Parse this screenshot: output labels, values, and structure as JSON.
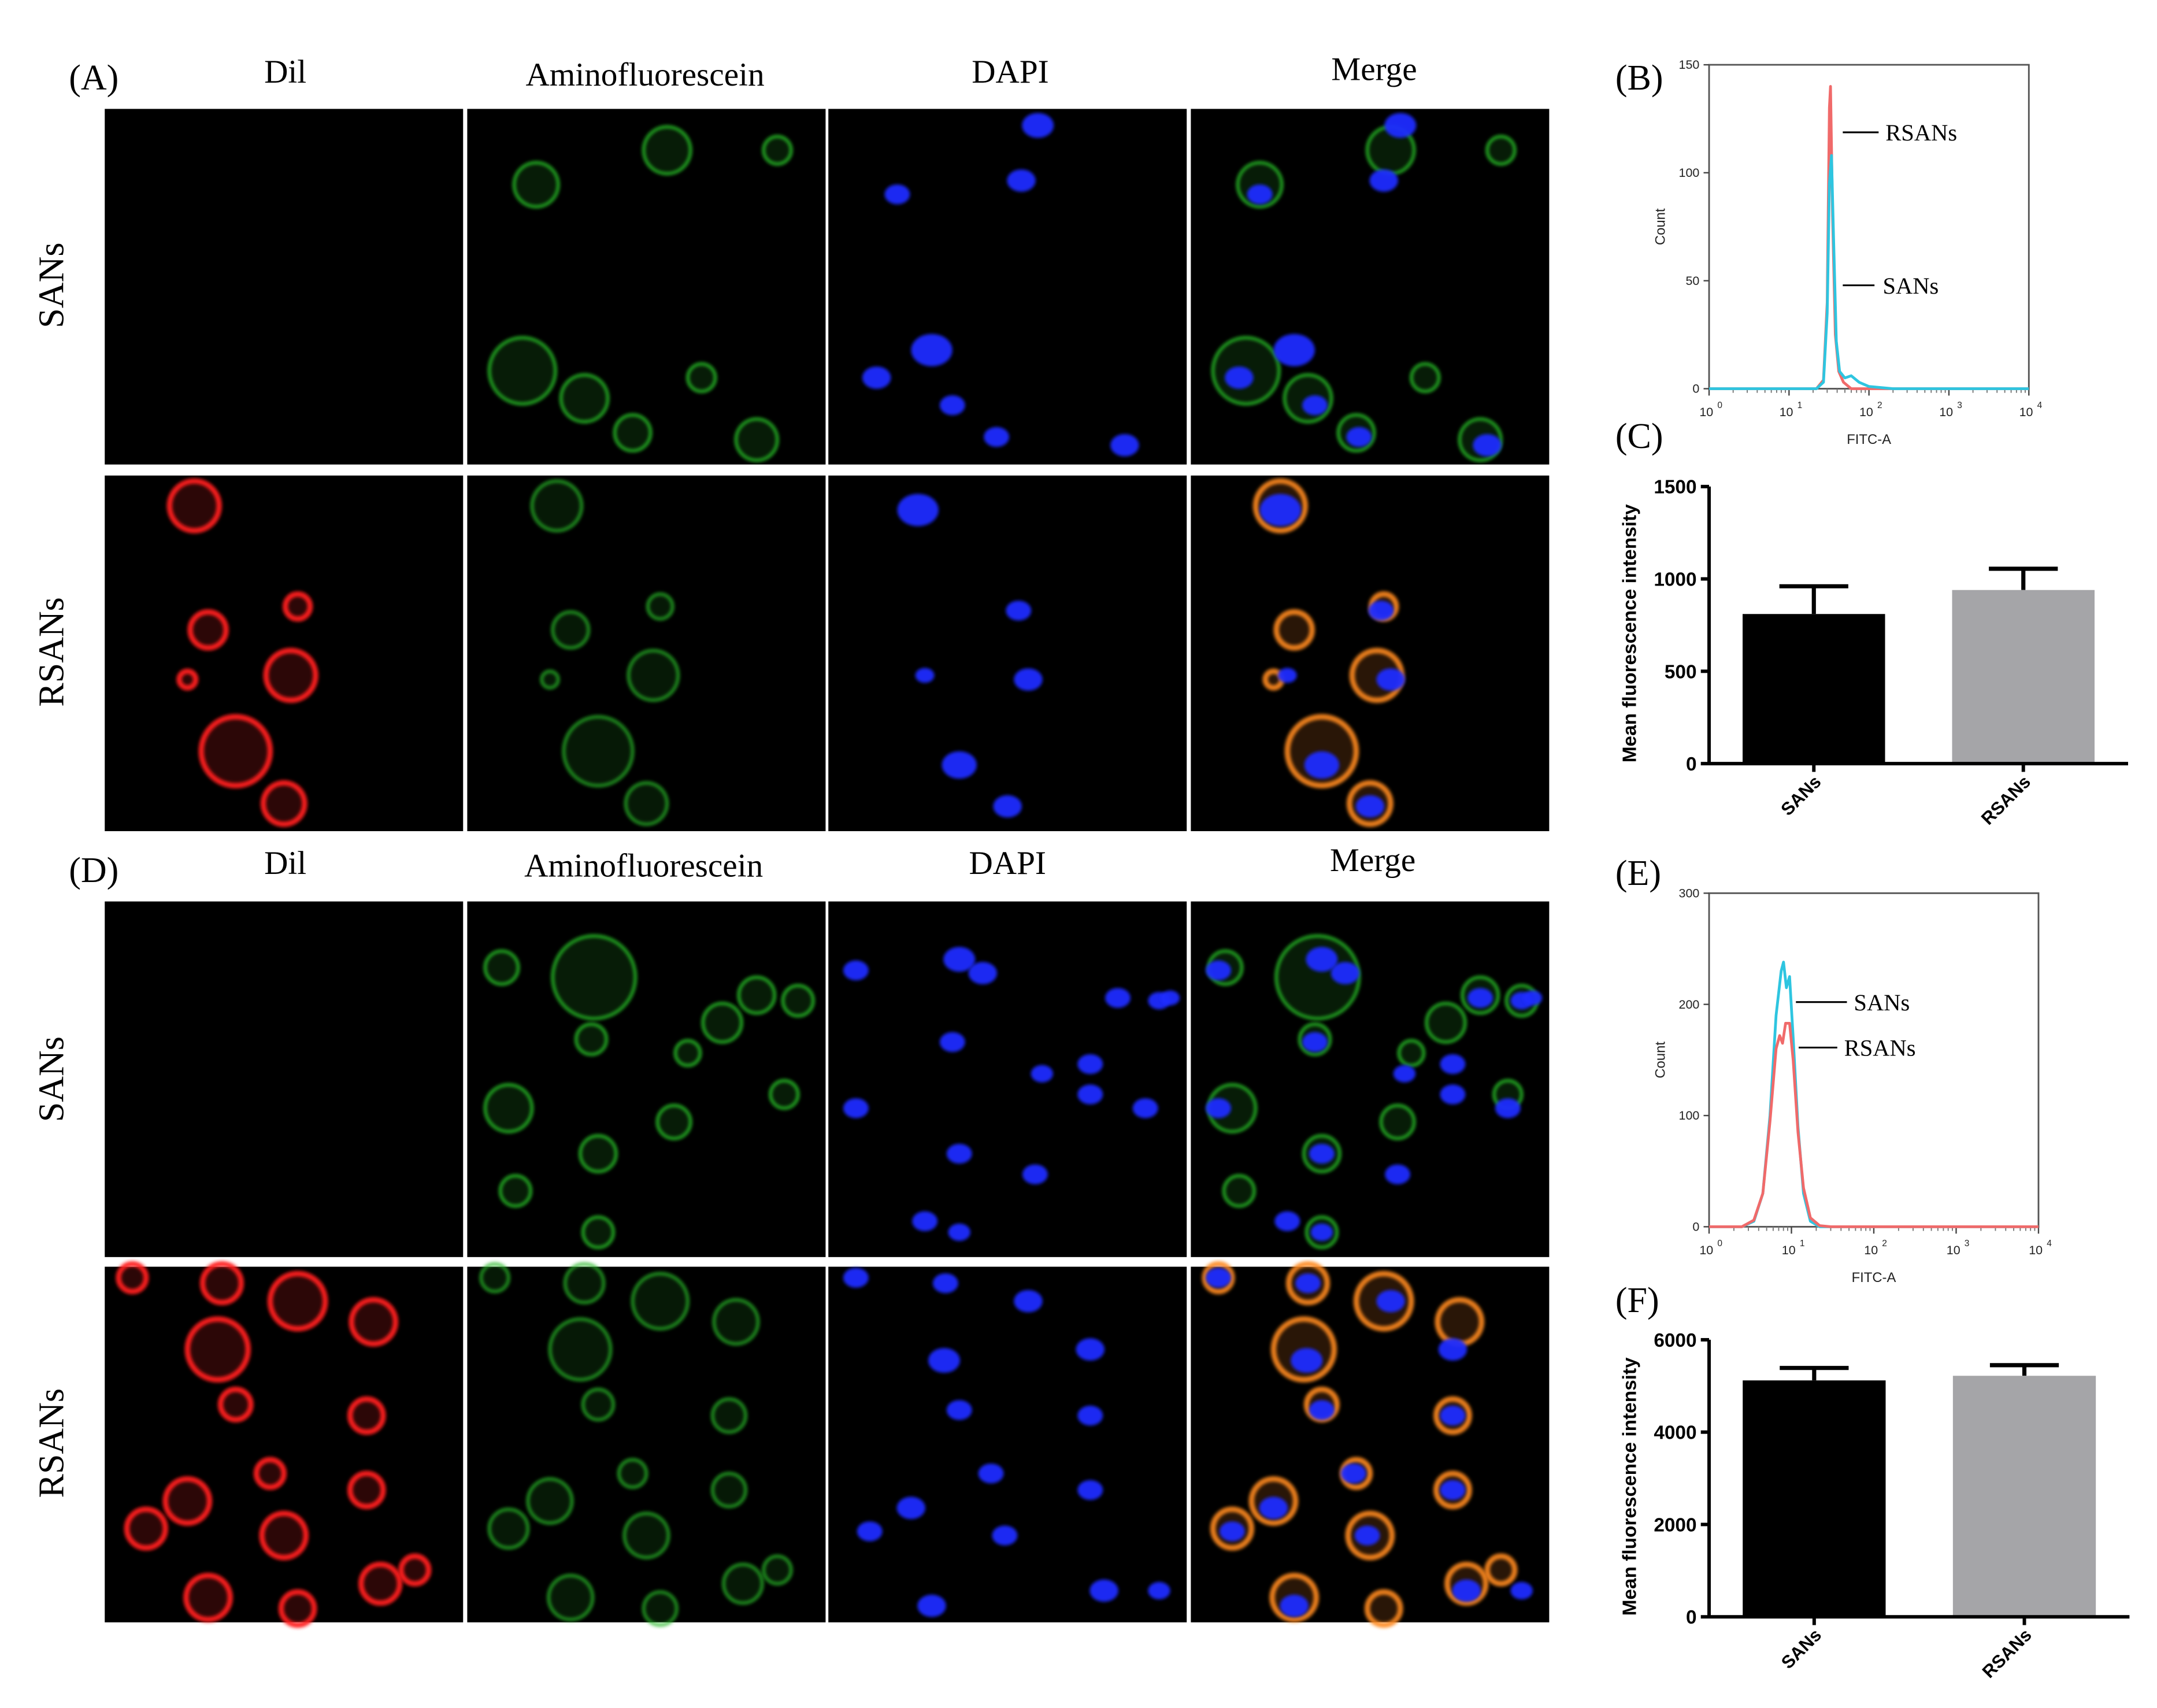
{
  "figure": {
    "panel_labels": [
      "(A)",
      "(B)",
      "(C)",
      "(D)",
      "(E)",
      "(F)"
    ],
    "column_headers": [
      "Dil",
      "Aminofluorescein",
      "DAPI",
      "Merge"
    ],
    "row_labels": [
      "SANs",
      "RSANs"
    ]
  },
  "colors": {
    "rsans_line": "#f06a6a",
    "sans_line": "#2ec5e0",
    "sans_bar": "#000000",
    "rsans_bar": "#a5a5a8",
    "dil_channel": "#ff1e1e",
    "amino_channel": "#27b827",
    "dapi_channel": "#1f2bff"
  },
  "micrographs": {
    "cell_shape_names": [
      "cell-ring",
      "nucleus"
    ]
  },
  "chart_data": [
    {
      "id": "B",
      "type": "line",
      "xlabel": "FITC-A",
      "ylabel": "Count",
      "x_scale": "log",
      "xlim": [
        1,
        10000
      ],
      "ylim": [
        0,
        150
      ],
      "x_tick_labels": [
        "10",
        "10",
        "10",
        "10",
        "10"
      ],
      "x_tick_exponents": [
        "0",
        "1",
        "2",
        "3",
        "4"
      ],
      "y_ticks": [
        0,
        50,
        100,
        150
      ],
      "y_tick_labels": [
        "0",
        "50",
        "100",
        "150"
      ],
      "series": [
        {
          "name": "RSANs",
          "color": "#f06a6a",
          "points": [
            [
              1,
              0
            ],
            [
              10,
              0
            ],
            [
              22,
              0
            ],
            [
              27,
              4
            ],
            [
              30,
              40
            ],
            [
              32,
              130
            ],
            [
              33,
              140
            ],
            [
              35,
              80
            ],
            [
              38,
              25
            ],
            [
              42,
              8
            ],
            [
              48,
              3
            ],
            [
              60,
              0
            ],
            [
              10000,
              0
            ]
          ]
        },
        {
          "name": "SANs",
          "color": "#2ec5e0",
          "points": [
            [
              1,
              0
            ],
            [
              10,
              0
            ],
            [
              22,
              0
            ],
            [
              27,
              3
            ],
            [
              30,
              35
            ],
            [
              32,
              95
            ],
            [
              34,
              108
            ],
            [
              36,
              70
            ],
            [
              39,
              22
            ],
            [
              43,
              8
            ],
            [
              50,
              5
            ],
            [
              60,
              6
            ],
            [
              75,
              3
            ],
            [
              100,
              1
            ],
            [
              200,
              0
            ],
            [
              10000,
              0
            ]
          ]
        }
      ]
    },
    {
      "id": "C",
      "type": "bar",
      "categories": [
        "SANs",
        "RSANs"
      ],
      "values": [
        810,
        940
      ],
      "errors": [
        150,
        115
      ],
      "bar_colors": [
        "#000000",
        "#a5a5a8"
      ],
      "ylabel": "Mean fluorescence intensity",
      "ylim": [
        0,
        1500
      ],
      "y_ticks": [
        0,
        500,
        1000,
        1500
      ],
      "y_tick_labels": [
        "0",
        "500",
        "1000",
        "1500"
      ]
    },
    {
      "id": "E",
      "type": "line",
      "xlabel": "FITC-A",
      "ylabel": "Count",
      "x_scale": "log",
      "xlim": [
        1,
        10000
      ],
      "ylim": [
        0,
        300
      ],
      "x_tick_labels": [
        "10",
        "10",
        "10",
        "10",
        "10"
      ],
      "x_tick_exponents": [
        "0",
        "1",
        "2",
        "3",
        "4"
      ],
      "y_ticks": [
        0,
        100,
        200,
        300
      ],
      "y_tick_labels": [
        "0",
        "100",
        "200",
        "300"
      ],
      "series": [
        {
          "name": "SANs",
          "color": "#2ec5e0",
          "points": [
            [
              1,
              0
            ],
            [
              2.5,
              0
            ],
            [
              3.5,
              5
            ],
            [
              4.5,
              30
            ],
            [
              5.5,
              100
            ],
            [
              6.5,
              190
            ],
            [
              7.5,
              230
            ],
            [
              8,
              238
            ],
            [
              8.7,
              215
            ],
            [
              9.5,
              225
            ],
            [
              10.5,
              170
            ],
            [
              12,
              90
            ],
            [
              14,
              30
            ],
            [
              17,
              5
            ],
            [
              22,
              0
            ],
            [
              10000,
              0
            ]
          ]
        },
        {
          "name": "RSANs",
          "color": "#f06a6a",
          "points": [
            [
              1,
              0
            ],
            [
              2.5,
              0
            ],
            [
              3.5,
              6
            ],
            [
              4.5,
              30
            ],
            [
              5.5,
              95
            ],
            [
              6.5,
              160
            ],
            [
              7.2,
              172
            ],
            [
              7.8,
              165
            ],
            [
              8.5,
              183
            ],
            [
              9.5,
              183
            ],
            [
              10.5,
              150
            ],
            [
              12,
              85
            ],
            [
              14,
              35
            ],
            [
              17,
              8
            ],
            [
              22,
              1
            ],
            [
              30,
              0
            ],
            [
              10000,
              0
            ]
          ]
        }
      ]
    },
    {
      "id": "F",
      "type": "bar",
      "categories": [
        "SANs",
        "RSANs"
      ],
      "values": [
        5120,
        5220
      ],
      "errors": [
        270,
        230
      ],
      "bar_colors": [
        "#000000",
        "#a5a5a8"
      ],
      "ylabel": "Mean fluorescence intensity",
      "ylim": [
        0,
        6000
      ],
      "y_ticks": [
        0,
        2000,
        4000,
        6000
      ],
      "y_tick_labels": [
        "0",
        "2000",
        "4000",
        "6000"
      ]
    }
  ]
}
